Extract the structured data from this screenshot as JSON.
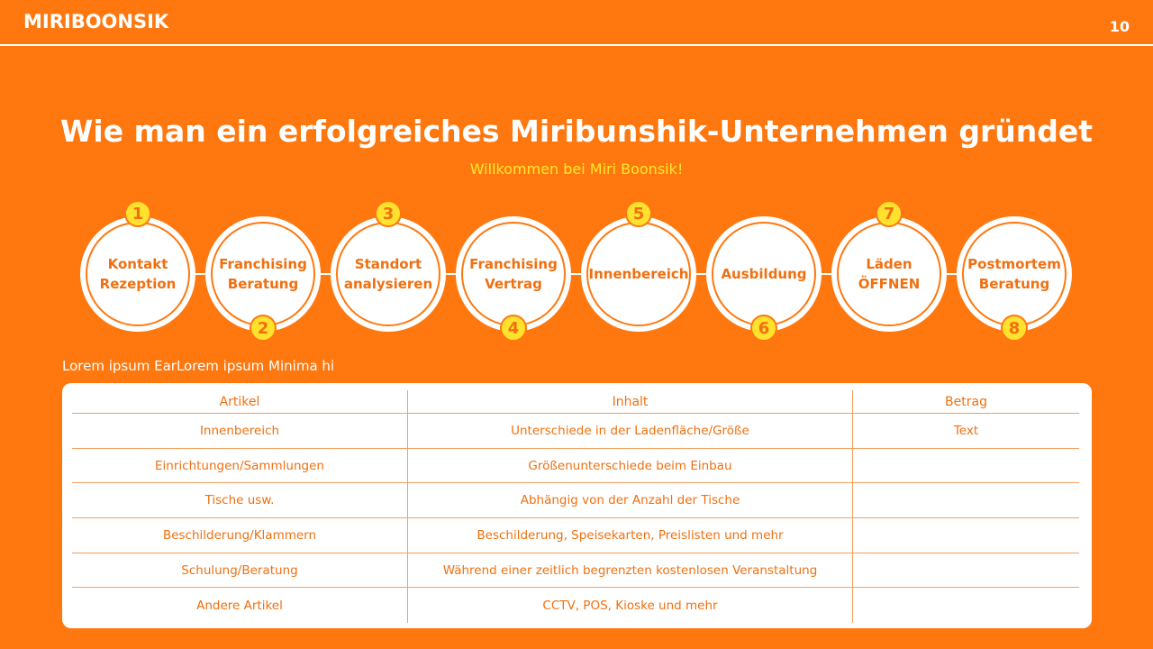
{
  "header": {
    "brand": "MIRIBOONSIK",
    "page_number": "10"
  },
  "title": "Wie man ein erfolgreiches Miribunshik-Unternehmen gründet",
  "subtitle": "Willkommen bei Miri Boonsik!",
  "steps": [
    {
      "number": "1",
      "label": "Kontakt\nRezeption"
    },
    {
      "number": "2",
      "label": "Franchising\nBeratung"
    },
    {
      "number": "3",
      "label": "Standort\nanalysieren"
    },
    {
      "number": "4",
      "label": "Franchising\nVertrag"
    },
    {
      "number": "5",
      "label": "Innenbereich"
    },
    {
      "number": "6",
      "label": "Ausbildung"
    },
    {
      "number": "7",
      "label": "Läden\nÖFFNEN"
    },
    {
      "number": "8",
      "label": "Postmortem\nBeratung"
    }
  ],
  "table_label": "Lorem ipsum EarLorem ipsum Minima hi",
  "table": {
    "headers": [
      "Artikel",
      "Inhalt",
      "Betrag"
    ],
    "rows": [
      [
        "Innenbereich",
        "Unterschiede in der Ladenfläche/Größe",
        "Text"
      ],
      [
        "Einrichtungen/Sammlungen",
        "Größenunterschiede beim Einbau",
        ""
      ],
      [
        "Tische usw.",
        "Abhängig von der Anzahl der Tische",
        ""
      ],
      [
        "Beschilderung/Klammern",
        "Beschilderung, Speisekarten, Preislisten und mehr",
        ""
      ],
      [
        "Schulung/Beratung",
        "Während einer zeitlich begrenzten kostenlosen Veranstaltung",
        ""
      ],
      [
        "Andere Artikel",
        "CCTV, POS, Kioske und mehr",
        ""
      ]
    ]
  },
  "colors": {
    "background": "#FF780F",
    "accent": "#FFE12E",
    "text_orange": "#F07010"
  }
}
